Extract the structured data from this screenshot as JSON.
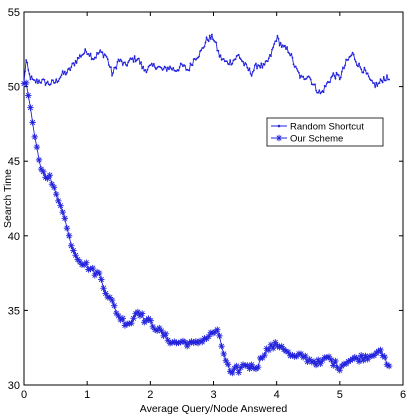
{
  "chart_data": {
    "type": "line",
    "title": "",
    "xlabel": "Average Query/Node Answered",
    "ylabel": "Search Time",
    "xlim": [
      0,
      6
    ],
    "ylim": [
      30,
      55
    ],
    "xticks": [
      0,
      1,
      2,
      3,
      4,
      5,
      6
    ],
    "yticks": [
      30,
      35,
      40,
      45,
      50,
      55
    ],
    "grid": false,
    "legend_position": "right",
    "series": [
      {
        "name": "Random Shortcut",
        "marker": "dot",
        "color": "#2222dd",
        "anchors_x": [
          0.0,
          0.03,
          0.08,
          0.15,
          0.25,
          0.4,
          0.5,
          0.6,
          0.7,
          0.8,
          0.9,
          1.0,
          1.1,
          1.2,
          1.3,
          1.4,
          1.5,
          1.6,
          1.7,
          1.8,
          1.9,
          2.0,
          2.1,
          2.2,
          2.3,
          2.4,
          2.5,
          2.6,
          2.7,
          2.8,
          2.9,
          3.0,
          3.1,
          3.2,
          3.3,
          3.4,
          3.5,
          3.6,
          3.7,
          3.8,
          3.9,
          4.0,
          4.1,
          4.2,
          4.3,
          4.4,
          4.5,
          4.6,
          4.7,
          4.8,
          4.9,
          5.0,
          5.1,
          5.2,
          5.3,
          5.4,
          5.5,
          5.6,
          5.7,
          5.78
        ],
        "anchors_y": [
          50.2,
          51.8,
          50.8,
          50.3,
          50.4,
          50.2,
          50.3,
          50.8,
          51.0,
          51.6,
          52.1,
          52.4,
          51.9,
          52.3,
          52.1,
          50.8,
          51.8,
          51.4,
          51.8,
          51.9,
          51.1,
          51.3,
          51.4,
          51.1,
          51.3,
          51.1,
          51.4,
          51.1,
          51.9,
          52.3,
          53.2,
          53.3,
          52.0,
          51.6,
          51.7,
          52.1,
          51.4,
          50.9,
          51.5,
          51.3,
          52.0,
          53.3,
          52.6,
          52.4,
          51.2,
          50.5,
          50.8,
          50.0,
          49.5,
          50.2,
          50.8,
          50.6,
          51.6,
          52.2,
          51.4,
          51.0,
          50.2,
          50.1,
          50.6,
          50.5
        ],
        "step": 0.017
      },
      {
        "name": "Our Scheme",
        "marker": "asterisk",
        "color": "#2222dd",
        "anchors_x": [
          0.0,
          0.05,
          0.1,
          0.15,
          0.2,
          0.25,
          0.3,
          0.35,
          0.4,
          0.5,
          0.6,
          0.7,
          0.8,
          0.9,
          1.0,
          1.1,
          1.2,
          1.3,
          1.4,
          1.5,
          1.6,
          1.7,
          1.8,
          1.9,
          2.0,
          2.1,
          2.2,
          2.3,
          2.4,
          2.5,
          2.6,
          2.7,
          2.8,
          2.9,
          3.0,
          3.05,
          3.1,
          3.2,
          3.25,
          3.3,
          3.35,
          3.4,
          3.5,
          3.6,
          3.7,
          3.8,
          3.9,
          4.0,
          4.1,
          4.2,
          4.3,
          4.4,
          4.5,
          4.6,
          4.7,
          4.8,
          4.9,
          5.0,
          5.1,
          5.2,
          5.3,
          5.4,
          5.5,
          5.6,
          5.7,
          5.78
        ],
        "anchors_y": [
          50.4,
          49.9,
          48.6,
          46.9,
          45.9,
          44.9,
          44.2,
          44.1,
          44.0,
          42.8,
          42.0,
          40.1,
          38.9,
          38.3,
          38.0,
          37.6,
          37.4,
          36.2,
          35.5,
          34.6,
          34.2,
          34.2,
          35.1,
          34.4,
          34.2,
          33.8,
          33.4,
          33.0,
          32.8,
          32.9,
          32.8,
          32.7,
          33.0,
          33.2,
          33.5,
          33.7,
          33.0,
          31.6,
          31.0,
          30.6,
          31.1,
          31.0,
          31.4,
          31.2,
          31.3,
          32.2,
          32.5,
          32.7,
          32.6,
          32.0,
          31.8,
          32.0,
          31.7,
          31.6,
          31.4,
          31.9,
          31.5,
          31.2,
          31.6,
          31.7,
          31.8,
          31.9,
          32.0,
          32.4,
          31.8,
          31.1
        ],
        "step": 0.034
      }
    ]
  }
}
